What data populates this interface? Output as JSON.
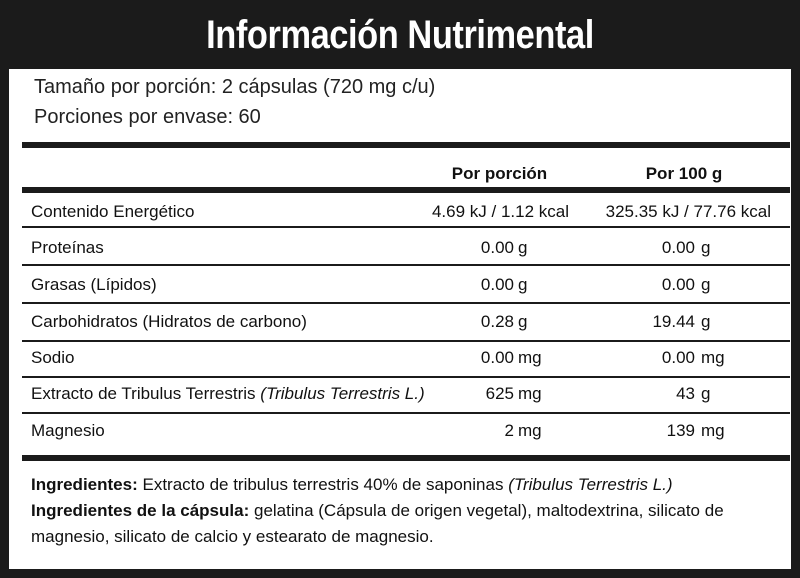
{
  "title": "Información Nutrimental",
  "serving_size": "Tamaño por porción: 2 cápsulas (720 mg c/u)",
  "servings_per_container": "Porciones por envase: 60",
  "columns": {
    "per_serving": "Por porción",
    "per_100g": "Por 100 g"
  },
  "rows": [
    {
      "label": "Contenido Energético",
      "per_serving": "4.69 kJ / 1.12 kcal",
      "per_100g": "325.35 kJ / 77.76 kcal"
    },
    {
      "label": "Proteínas",
      "per_serving": "0.00",
      "per_serving_unit": "g",
      "per_100g": "0.00",
      "per_100g_unit": "g"
    },
    {
      "label": "Grasas (Lípidos)",
      "per_serving": "0.00",
      "per_serving_unit": "g",
      "per_100g": "0.00",
      "per_100g_unit": "g"
    },
    {
      "label": "Carbohidratos (Hidratos de carbono)",
      "per_serving": "0.28",
      "per_serving_unit": "g",
      "per_100g": "19.44",
      "per_100g_unit": "g"
    },
    {
      "label": "Sodio",
      "per_serving": "0.00",
      "per_serving_unit": "mg",
      "per_100g": "0.00",
      "per_100g_unit": "mg"
    },
    {
      "label": "Extracto de Tribulus Terrestris",
      "label_sci": "(Tribulus Terrestris L.)",
      "per_serving": "625",
      "per_serving_unit": "mg",
      "per_100g": "43",
      "per_100g_unit": "g"
    },
    {
      "label": "Magnesio",
      "per_serving": "2",
      "per_serving_unit": "mg",
      "per_100g": "139",
      "per_100g_unit": "mg"
    }
  ],
  "ingredients": {
    "label": "Ingredientes:",
    "text": "Extracto de tribulus terrestris 40% de saponinas",
    "sci": "(Tribulus Terrestris L.)"
  },
  "capsule_ingredients": {
    "label": "Ingredientes de la cápsula:",
    "text": "gelatina (Cápsula de origen vegetal), maltodextrina, silicato de magnesio, silicato de calcio y estearato de magnesio."
  }
}
